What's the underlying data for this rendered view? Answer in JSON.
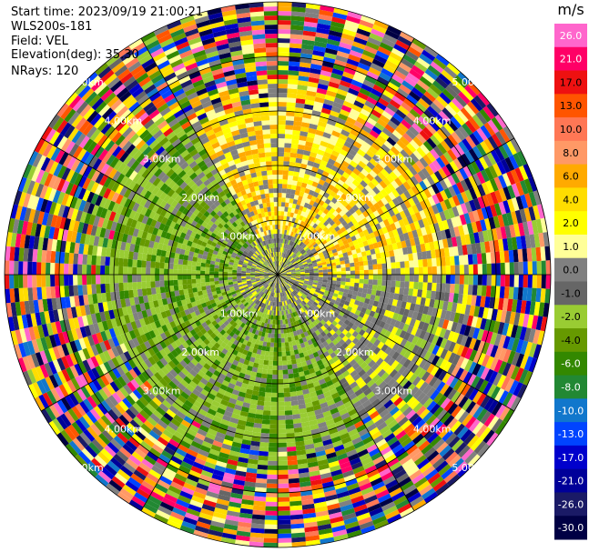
{
  "header": {
    "start_time": "Start time: 2023/09/19 21:00:21",
    "site": "WLS200s-181",
    "field": "Field: VEL",
    "elevation": "Elevation(deg): 35.30",
    "nrays": "NRays: 120"
  },
  "chart_data": {
    "type": "heatmap",
    "subtype": "polar-ppi",
    "field": "VEL",
    "nrays": 120,
    "range_rings_km": [
      1,
      2,
      3,
      4,
      5
    ],
    "range_ring_labels": [
      "1.00km",
      "2.00km",
      "3.00km",
      "4.00km",
      "5.00km"
    ],
    "spokes_deg": [
      0,
      30,
      60,
      90,
      120,
      150,
      180,
      210,
      240,
      270,
      300,
      330
    ],
    "colorbar": {
      "unit": "m/s",
      "ticks": [
        "26.0",
        "21.0",
        "17.0",
        "13.0",
        "10.0",
        "8.0",
        "6.0",
        "4.0",
        "2.0",
        "1.0",
        "0.0",
        "-1.0",
        "-2.0",
        "-4.0",
        "-6.0",
        "-8.0",
        "-10.0",
        "-13.0",
        "-17.0",
        "-21.0",
        "-26.0",
        "-30.0"
      ],
      "colors": [
        "#ff66cc",
        "#ff0066",
        "#ee1111",
        "#ff5500",
        "#ff7755",
        "#ff9966",
        "#ffaa00",
        "#ffdd00",
        "#ffff00",
        "#ffff99",
        "#808080",
        "#666666",
        "#99cc33",
        "#669900",
        "#338800",
        "#228833",
        "#1177cc",
        "#0044ff",
        "#0000cc",
        "#000099",
        "#1a1a66",
        "#000044"
      ]
    }
  }
}
